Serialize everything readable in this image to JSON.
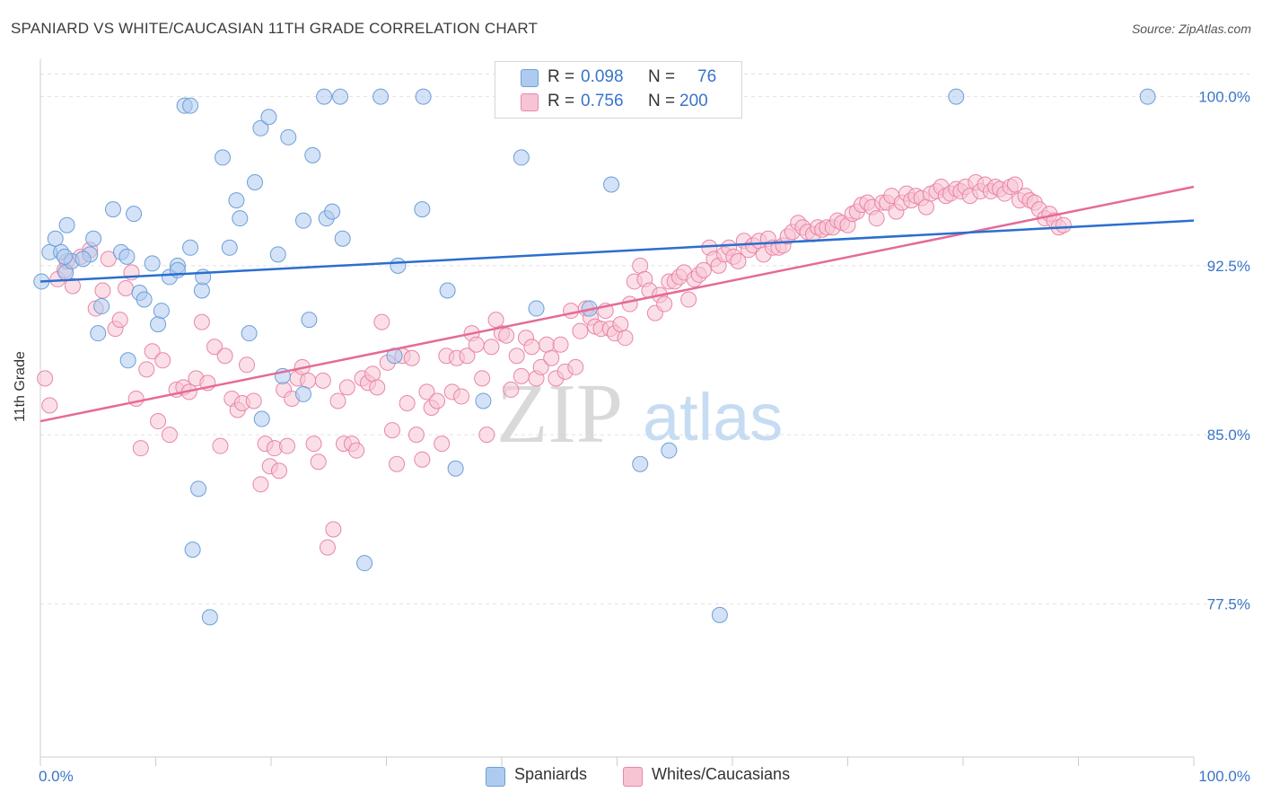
{
  "title": "SPANIARD VS WHITE/CAUCASIAN 11TH GRADE CORRELATION CHART",
  "source": "Source: ZipAtlas.com",
  "watermark": {
    "zip": "ZIP",
    "atlas": "atlas"
  },
  "colors": {
    "blue_fill": "#aecbef",
    "blue_stroke": "#6d9fd8",
    "blue_line": "#2a6fcf",
    "pink_fill": "#f7c4d4",
    "pink_stroke": "#e985a8",
    "pink_line": "#e56a97",
    "value_text": "#3a74c9"
  },
  "legend_top": [
    {
      "r_label": "R =",
      "r_value": "0.098",
      "n_label": "N =",
      "n_value": "76",
      "swatch": "blue"
    },
    {
      "r_label": "R =",
      "r_value": "0.756",
      "n_label": "N =",
      "n_value": "200",
      "swatch": "pink"
    }
  ],
  "legend_bottom": [
    {
      "label": "Spaniards",
      "swatch": "blue"
    },
    {
      "label": "Whites/Caucasians",
      "swatch": "pink"
    }
  ],
  "chart_data": {
    "type": "scatter",
    "title": "SPANIARD VS WHITE/CAUCASIAN 11TH GRADE CORRELATION CHART",
    "xlabel": "",
    "ylabel": "11th Grade",
    "xlim": [
      0,
      100
    ],
    "ylim": [
      70.7,
      101.5
    ],
    "x_tick_labels": [
      "0.0%",
      "100.0%"
    ],
    "y_ticks": [
      77.5,
      85.0,
      92.5,
      100.0
    ],
    "y_tick_labels": [
      "77.5%",
      "85.0%",
      "92.5%",
      "100.0%"
    ],
    "grid": "horizontal dashed",
    "series": [
      {
        "name": "Spaniards",
        "color": "#aecbef",
        "trend": {
          "x": [
            0,
            100
          ],
          "y": [
            91.8,
            94.5
          ]
        },
        "points": [
          [
            0.1,
            91.8
          ],
          [
            0.8,
            93.1
          ],
          [
            1.3,
            93.7
          ],
          [
            1.8,
            93.1
          ],
          [
            2.2,
            92.2
          ],
          [
            2.7,
            92.7
          ],
          [
            2.1,
            92.9
          ],
          [
            2.3,
            94.3
          ],
          [
            4.3,
            93.0
          ],
          [
            3.7,
            92.8
          ],
          [
            4.6,
            93.7
          ],
          [
            5.3,
            90.7
          ],
          [
            5.0,
            89.5
          ],
          [
            6.3,
            95.0
          ],
          [
            7.0,
            93.1
          ],
          [
            7.6,
            88.3
          ],
          [
            7.5,
            92.9
          ],
          [
            8.1,
            94.8
          ],
          [
            8.6,
            91.3
          ],
          [
            9.0,
            91.0
          ],
          [
            9.7,
            92.6
          ],
          [
            10.2,
            89.9
          ],
          [
            10.5,
            90.5
          ],
          [
            11.2,
            92.0
          ],
          [
            11.9,
            92.5
          ],
          [
            11.9,
            92.3
          ],
          [
            12.5,
            99.6
          ],
          [
            13.0,
            93.3
          ],
          [
            13.7,
            82.6
          ],
          [
            14.0,
            91.4
          ],
          [
            14.1,
            92.0
          ],
          [
            14.7,
            76.9
          ],
          [
            15.8,
            97.3
          ],
          [
            16.4,
            93.3
          ],
          [
            17.0,
            95.4
          ],
          [
            17.3,
            94.6
          ],
          [
            18.1,
            89.5
          ],
          [
            18.6,
            96.2
          ],
          [
            19.2,
            85.7
          ],
          [
            19.1,
            98.6
          ],
          [
            19.8,
            99.1
          ],
          [
            20.6,
            93.0
          ],
          [
            21.0,
            87.6
          ],
          [
            21.5,
            98.2
          ],
          [
            22.8,
            86.8
          ],
          [
            22.8,
            94.5
          ],
          [
            23.3,
            90.1
          ],
          [
            23.6,
            97.4
          ],
          [
            24.8,
            94.6
          ],
          [
            25.3,
            94.9
          ],
          [
            26.2,
            93.7
          ],
          [
            24.6,
            100.0
          ],
          [
            29.5,
            100.0
          ],
          [
            30.7,
            88.5
          ],
          [
            31.0,
            92.5
          ],
          [
            33.2,
            100.0
          ],
          [
            33.1,
            95.0
          ],
          [
            35.3,
            91.4
          ],
          [
            36.0,
            83.5
          ],
          [
            38.4,
            86.5
          ],
          [
            40.2,
            100.0
          ],
          [
            41.7,
            97.3
          ],
          [
            43.0,
            90.6
          ],
          [
            47.6,
            90.6
          ],
          [
            47.3,
            100.0
          ],
          [
            49.5,
            96.1
          ],
          [
            52.0,
            83.7
          ],
          [
            54.5,
            84.3
          ],
          [
            58.2,
            100.0
          ],
          [
            79.4,
            100.0
          ],
          [
            96.0,
            100.0
          ],
          [
            13.2,
            79.9
          ],
          [
            28.1,
            79.3
          ],
          [
            58.9,
            77.0
          ],
          [
            13.0,
            99.6
          ],
          [
            26.0,
            100.0
          ]
        ]
      },
      {
        "name": "Whites/Caucasians",
        "color": "#f7c4d4",
        "trend": {
          "x": [
            0,
            100
          ],
          "y": [
            85.6,
            96.0
          ]
        },
        "points": [
          [
            0.4,
            87.5
          ],
          [
            0.8,
            86.3
          ],
          [
            1.5,
            91.9
          ],
          [
            2.1,
            92.3
          ],
          [
            2.3,
            92.7
          ],
          [
            2.8,
            91.6
          ],
          [
            3.5,
            92.9
          ],
          [
            4.3,
            93.2
          ],
          [
            4.8,
            90.6
          ],
          [
            5.4,
            91.4
          ],
          [
            5.9,
            92.8
          ],
          [
            6.5,
            89.7
          ],
          [
            6.9,
            90.1
          ],
          [
            7.4,
            91.5
          ],
          [
            7.9,
            92.2
          ],
          [
            8.3,
            86.6
          ],
          [
            8.7,
            84.4
          ],
          [
            9.2,
            87.9
          ],
          [
            9.7,
            88.7
          ],
          [
            10.2,
            85.6
          ],
          [
            10.6,
            88.3
          ],
          [
            11.2,
            85.0
          ],
          [
            11.8,
            87.0
          ],
          [
            12.4,
            87.1
          ],
          [
            12.9,
            86.9
          ],
          [
            13.5,
            87.5
          ],
          [
            14.0,
            90.0
          ],
          [
            14.5,
            87.3
          ],
          [
            15.1,
            88.9
          ],
          [
            15.6,
            84.5
          ],
          [
            16.0,
            88.5
          ],
          [
            16.6,
            86.6
          ],
          [
            17.1,
            86.1
          ],
          [
            17.5,
            86.4
          ],
          [
            17.9,
            88.1
          ],
          [
            18.5,
            86.5
          ],
          [
            19.1,
            82.8
          ],
          [
            19.5,
            84.6
          ],
          [
            19.9,
            83.6
          ],
          [
            20.3,
            84.4
          ],
          [
            20.7,
            83.4
          ],
          [
            21.1,
            87.0
          ],
          [
            21.4,
            84.5
          ],
          [
            21.8,
            86.6
          ],
          [
            22.3,
            87.5
          ],
          [
            22.7,
            88.0
          ],
          [
            23.2,
            87.4
          ],
          [
            23.7,
            84.6
          ],
          [
            24.1,
            83.8
          ],
          [
            24.5,
            87.4
          ],
          [
            24.9,
            80.0
          ],
          [
            25.4,
            80.8
          ],
          [
            25.8,
            86.5
          ],
          [
            26.3,
            84.6
          ],
          [
            26.6,
            87.1
          ],
          [
            27.0,
            84.6
          ],
          [
            27.4,
            84.3
          ],
          [
            27.9,
            87.5
          ],
          [
            28.4,
            87.3
          ],
          [
            28.8,
            87.7
          ],
          [
            29.2,
            87.1
          ],
          [
            29.6,
            90.0
          ],
          [
            30.1,
            88.2
          ],
          [
            30.5,
            85.2
          ],
          [
            30.9,
            83.7
          ],
          [
            31.4,
            88.5
          ],
          [
            31.8,
            86.4
          ],
          [
            32.2,
            88.4
          ],
          [
            32.6,
            85.0
          ],
          [
            33.1,
            83.9
          ],
          [
            33.5,
            86.9
          ],
          [
            33.9,
            86.2
          ],
          [
            34.4,
            86.5
          ],
          [
            34.8,
            84.6
          ],
          [
            35.2,
            88.5
          ],
          [
            35.7,
            86.9
          ],
          [
            36.1,
            88.4
          ],
          [
            36.5,
            86.7
          ],
          [
            37.0,
            88.5
          ],
          [
            37.4,
            89.5
          ],
          [
            37.8,
            89.0
          ],
          [
            38.3,
            87.5
          ],
          [
            38.7,
            85.0
          ],
          [
            39.1,
            88.9
          ],
          [
            39.5,
            90.1
          ],
          [
            40.0,
            89.5
          ],
          [
            40.4,
            89.4
          ],
          [
            40.8,
            87.0
          ],
          [
            41.3,
            88.5
          ],
          [
            41.7,
            87.6
          ],
          [
            42.1,
            89.3
          ],
          [
            42.6,
            88.9
          ],
          [
            43.0,
            87.5
          ],
          [
            43.4,
            88.0
          ],
          [
            43.9,
            89.0
          ],
          [
            44.3,
            88.4
          ],
          [
            44.7,
            87.5
          ],
          [
            45.1,
            89.0
          ],
          [
            45.5,
            87.8
          ],
          [
            46.0,
            90.5
          ],
          [
            46.4,
            88.0
          ],
          [
            46.8,
            89.6
          ],
          [
            47.3,
            90.6
          ],
          [
            47.7,
            90.2
          ],
          [
            48.1,
            89.8
          ],
          [
            48.6,
            89.7
          ],
          [
            49.0,
            90.5
          ],
          [
            49.4,
            89.7
          ],
          [
            49.8,
            89.5
          ],
          [
            50.3,
            89.9
          ],
          [
            50.7,
            89.3
          ],
          [
            51.1,
            90.8
          ],
          [
            51.5,
            91.8
          ],
          [
            52.0,
            92.5
          ],
          [
            52.4,
            91.9
          ],
          [
            52.8,
            91.4
          ],
          [
            53.3,
            90.4
          ],
          [
            53.7,
            91.2
          ],
          [
            54.1,
            90.8
          ],
          [
            54.5,
            91.8
          ],
          [
            55.0,
            91.8
          ],
          [
            55.4,
            92.0
          ],
          [
            55.8,
            92.2
          ],
          [
            56.2,
            91.0
          ],
          [
            56.7,
            91.9
          ],
          [
            57.1,
            92.1
          ],
          [
            57.5,
            92.3
          ],
          [
            58.0,
            93.3
          ],
          [
            58.4,
            92.8
          ],
          [
            58.8,
            92.5
          ],
          [
            59.3,
            93.0
          ],
          [
            59.7,
            93.3
          ],
          [
            60.1,
            92.9
          ],
          [
            60.5,
            92.7
          ],
          [
            61.0,
            93.6
          ],
          [
            61.4,
            93.2
          ],
          [
            61.8,
            93.4
          ],
          [
            62.3,
            93.6
          ],
          [
            62.7,
            93.0
          ],
          [
            63.1,
            93.7
          ],
          [
            63.5,
            93.3
          ],
          [
            64.0,
            93.3
          ],
          [
            64.4,
            93.4
          ],
          [
            64.8,
            93.8
          ],
          [
            65.2,
            94.0
          ],
          [
            65.7,
            94.4
          ],
          [
            66.1,
            94.2
          ],
          [
            66.5,
            94.0
          ],
          [
            67.0,
            93.9
          ],
          [
            67.4,
            94.2
          ],
          [
            67.8,
            94.1
          ],
          [
            68.2,
            94.2
          ],
          [
            68.7,
            94.2
          ],
          [
            69.1,
            94.5
          ],
          [
            69.5,
            94.4
          ],
          [
            70.0,
            94.3
          ],
          [
            70.4,
            94.8
          ],
          [
            70.8,
            94.9
          ],
          [
            71.2,
            95.2
          ],
          [
            71.7,
            95.3
          ],
          [
            72.1,
            95.1
          ],
          [
            72.5,
            94.6
          ],
          [
            73.0,
            95.3
          ],
          [
            73.4,
            95.3
          ],
          [
            73.8,
            95.6
          ],
          [
            74.2,
            94.9
          ],
          [
            74.7,
            95.3
          ],
          [
            75.1,
            95.7
          ],
          [
            75.5,
            95.4
          ],
          [
            75.9,
            95.6
          ],
          [
            76.4,
            95.5
          ],
          [
            76.8,
            95.1
          ],
          [
            77.2,
            95.7
          ],
          [
            77.7,
            95.8
          ],
          [
            78.1,
            96.0
          ],
          [
            78.5,
            95.6
          ],
          [
            78.9,
            95.7
          ],
          [
            79.4,
            95.9
          ],
          [
            79.8,
            95.8
          ],
          [
            80.2,
            96.0
          ],
          [
            80.6,
            95.6
          ],
          [
            81.1,
            96.2
          ],
          [
            81.5,
            95.8
          ],
          [
            81.9,
            96.1
          ],
          [
            82.4,
            95.8
          ],
          [
            82.8,
            96.0
          ],
          [
            83.2,
            95.9
          ],
          [
            83.6,
            95.7
          ],
          [
            84.1,
            96.0
          ],
          [
            84.5,
            96.1
          ],
          [
            84.9,
            95.4
          ],
          [
            85.4,
            95.6
          ],
          [
            85.8,
            95.4
          ],
          [
            86.2,
            95.3
          ],
          [
            86.6,
            95.0
          ],
          [
            87.1,
            94.6
          ],
          [
            87.5,
            94.8
          ],
          [
            87.9,
            94.5
          ],
          [
            88.3,
            94.2
          ],
          [
            88.7,
            94.3
          ]
        ]
      }
    ]
  }
}
